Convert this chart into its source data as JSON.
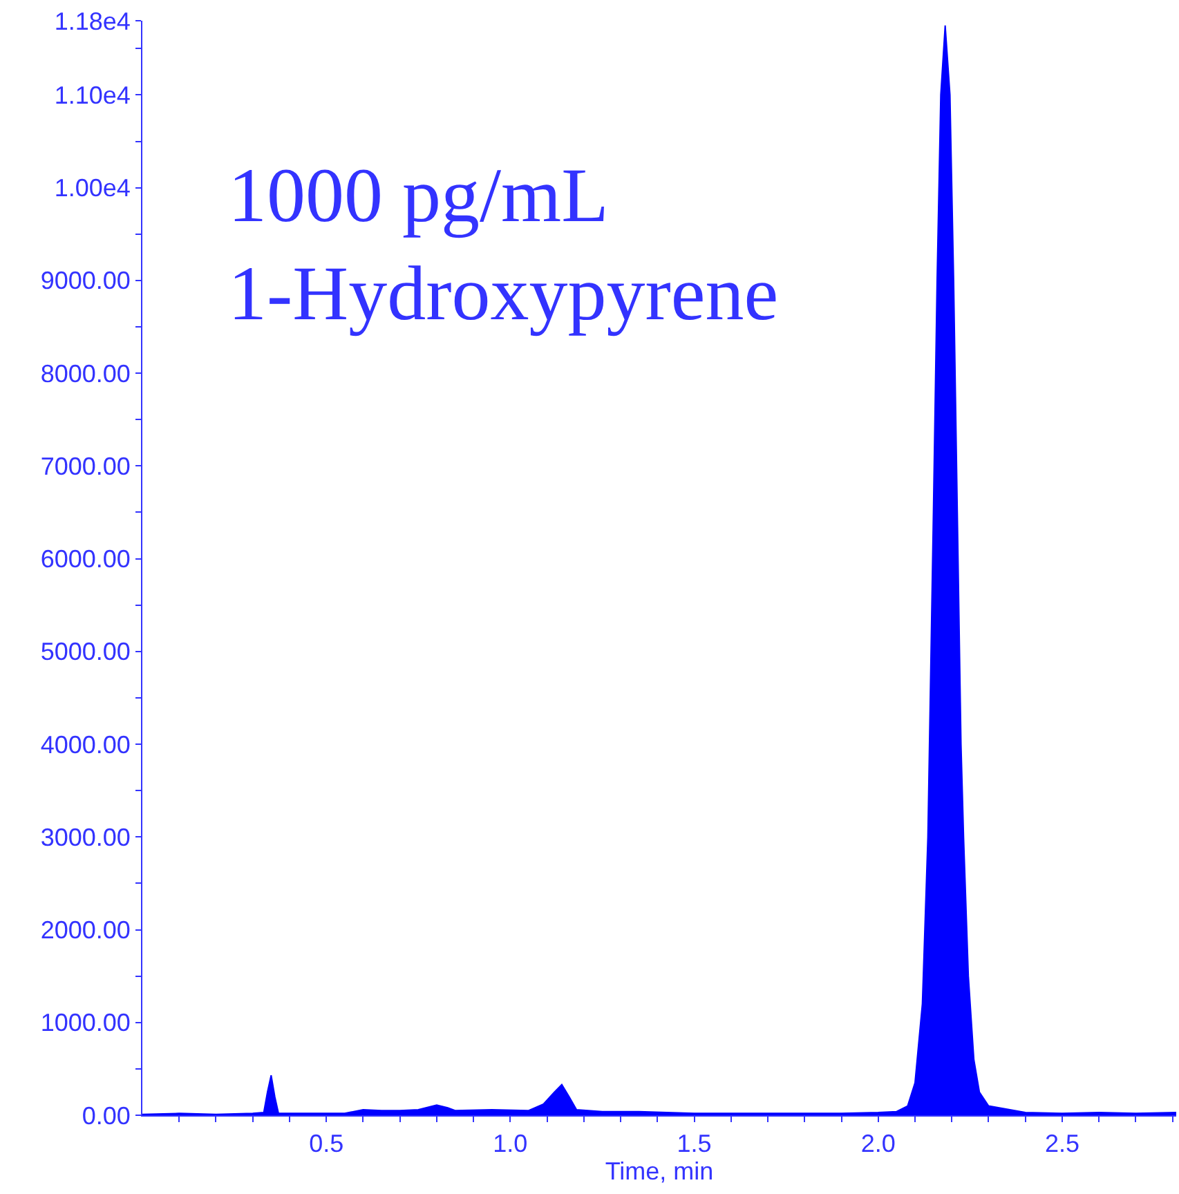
{
  "chart_data": {
    "type": "area",
    "xlabel": "Time, min",
    "annotations": [
      "1000 pg/mL",
      "1-Hydroxypyrene"
    ],
    "x": [
      0.0,
      0.1,
      0.2,
      0.3,
      0.33,
      0.34,
      0.35,
      0.36,
      0.37,
      0.45,
      0.55,
      0.6,
      0.65,
      0.7,
      0.75,
      0.8,
      0.83,
      0.85,
      0.95,
      1.05,
      1.09,
      1.12,
      1.14,
      1.16,
      1.18,
      1.25,
      1.35,
      1.5,
      1.7,
      1.9,
      2.0,
      2.05,
      2.08,
      2.1,
      2.12,
      2.135,
      2.15,
      2.16,
      2.17,
      2.182,
      2.195,
      2.205,
      2.215,
      2.225,
      2.232,
      2.245,
      2.26,
      2.275,
      2.3,
      2.4,
      2.5,
      2.6,
      2.7,
      2.81
    ],
    "series": [
      {
        "color": "#0000ff",
        "values": [
          10,
          20,
          10,
          20,
          30,
          250,
          430,
          200,
          20,
          20,
          20,
          60,
          50,
          50,
          60,
          110,
          80,
          50,
          60,
          50,
          120,
          250,
          330,
          200,
          60,
          40,
          40,
          20,
          20,
          20,
          30,
          40,
          100,
          350,
          1200,
          3000,
          6500,
          9000,
          11000,
          11750,
          11000,
          9000,
          6500,
          4000,
          3000,
          1500,
          600,
          250,
          100,
          30,
          20,
          30,
          20,
          30
        ]
      }
    ],
    "xlim": [
      0,
      2.81
    ],
    "xticks": [
      {
        "value": 0.1,
        "label": null
      },
      {
        "value": 0.2,
        "label": null
      },
      {
        "value": 0.3,
        "label": null
      },
      {
        "value": 0.4,
        "label": null
      },
      0.5,
      {
        "value": 0.6,
        "label": null
      },
      {
        "value": 0.7,
        "label": null
      },
      {
        "value": 0.8,
        "label": null
      },
      {
        "value": 0.9,
        "label": null
      },
      {
        "value": 1.0,
        "label": "1.0"
      },
      {
        "value": 1.1,
        "label": null
      },
      {
        "value": 1.2,
        "label": null
      },
      {
        "value": 1.3,
        "label": null
      },
      {
        "value": 1.4,
        "label": null
      },
      1.5,
      {
        "value": 1.6,
        "label": null
      },
      {
        "value": 1.7,
        "label": null
      },
      {
        "value": 1.8,
        "label": null
      },
      {
        "value": 1.9,
        "label": null
      },
      {
        "value": 2.0,
        "label": "2.0"
      },
      {
        "value": 2.1,
        "label": null
      },
      {
        "value": 2.2,
        "label": null
      },
      {
        "value": 2.3,
        "label": null
      },
      {
        "value": 2.4,
        "label": null
      },
      2.5,
      {
        "value": 2.6,
        "label": null
      },
      {
        "value": 2.7,
        "label": null
      },
      {
        "value": 2.8,
        "label": null
      }
    ],
    "ylim": [
      0,
      11800
    ],
    "yticks": [
      {
        "value": 0,
        "label": "0.00"
      },
      {
        "value": 500,
        "label": null
      },
      {
        "value": 1000,
        "label": "1000.00"
      },
      {
        "value": 1500,
        "label": null
      },
      {
        "value": 2000,
        "label": "2000.00"
      },
      {
        "value": 2500,
        "label": null
      },
      {
        "value": 3000,
        "label": "3000.00"
      },
      {
        "value": 3500,
        "label": null
      },
      {
        "value": 4000,
        "label": "4000.00"
      },
      {
        "value": 4500,
        "label": null
      },
      {
        "value": 5000,
        "label": "5000.00"
      },
      {
        "value": 5500,
        "label": null
      },
      {
        "value": 6000,
        "label": "6000.00"
      },
      {
        "value": 6500,
        "label": null
      },
      {
        "value": 7000,
        "label": "7000.00"
      },
      {
        "value": 7500,
        "label": null
      },
      {
        "value": 8000,
        "label": "8000.00"
      },
      {
        "value": 8500,
        "label": null
      },
      {
        "value": 9000,
        "label": "9000.00"
      },
      {
        "value": 9500,
        "label": null
      },
      {
        "value": 10000,
        "label": "1.00e4"
      },
      {
        "value": 10500,
        "label": null
      },
      {
        "value": 11000,
        "label": "1.10e4"
      },
      {
        "value": 11500,
        "label": null
      },
      {
        "value": 11800,
        "label": "1.18e4"
      }
    ],
    "tick_labels": true
  }
}
